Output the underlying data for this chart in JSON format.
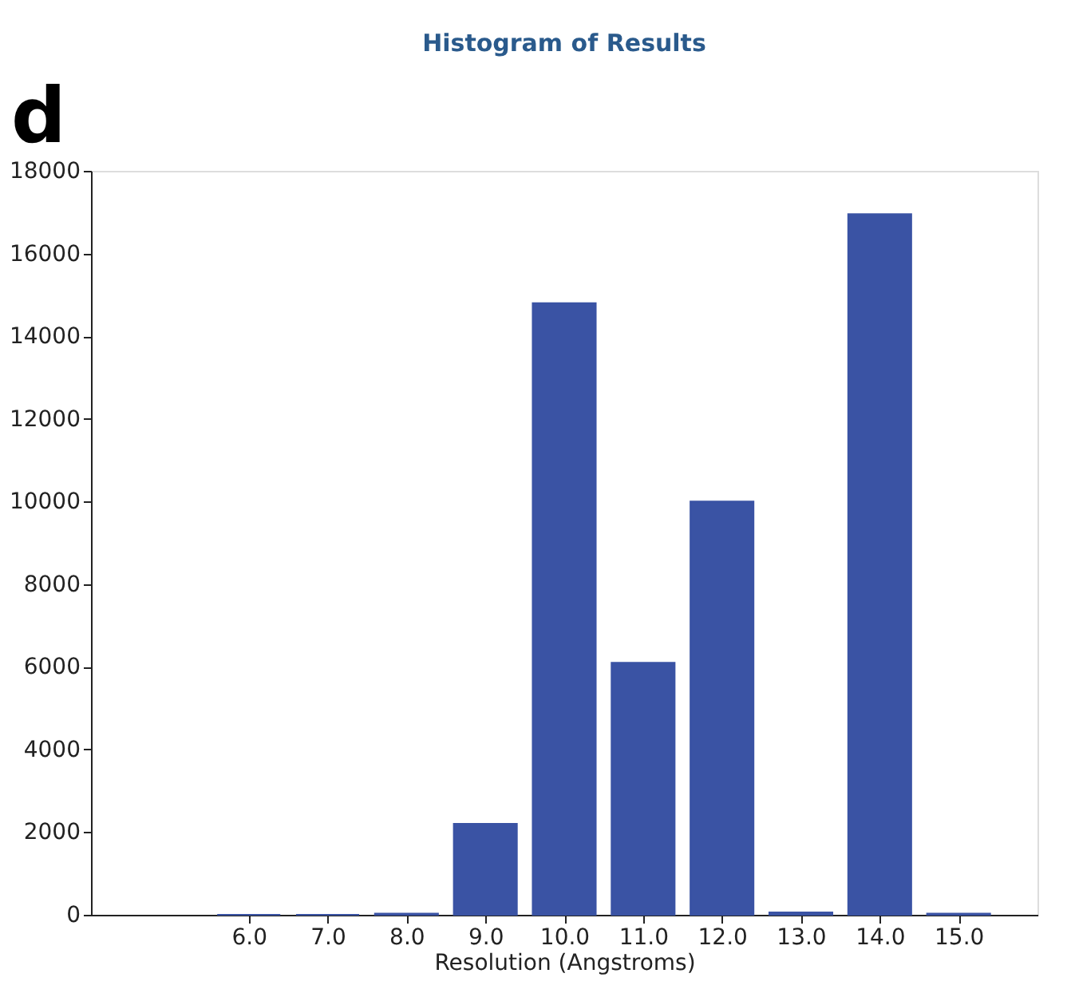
{
  "chart_data": {
    "type": "bar",
    "title": "Histogram of Results",
    "xlabel": "Resolution (Angstroms)",
    "annotations": [
      "d"
    ],
    "x": [
      6,
      7,
      8,
      9,
      10,
      11,
      12,
      13,
      14,
      15
    ],
    "values": [
      0,
      0,
      30,
      2200,
      14800,
      6100,
      10000,
      60,
      16950,
      30
    ],
    "color": "#3a53a4",
    "xlim": [
      4,
      16
    ],
    "xticks": [
      {
        "value": 6,
        "label": "6.0"
      },
      {
        "value": 7,
        "label": "7.0"
      },
      {
        "value": 8,
        "label": "8.0"
      },
      {
        "value": 9,
        "label": "9.0"
      },
      {
        "value": 10,
        "label": "10.0"
      },
      {
        "value": 11,
        "label": "11.0"
      },
      {
        "value": 12,
        "label": "12.0"
      },
      {
        "value": 13,
        "label": "13.0"
      },
      {
        "value": 14,
        "label": "14.0"
      },
      {
        "value": 15,
        "label": "15.0"
      }
    ],
    "ylim": [
      0,
      18000
    ],
    "yticks": [
      0,
      2000,
      4000,
      6000,
      8000,
      10000,
      12000,
      14000,
      16000,
      18000
    ],
    "grid": false
  }
}
